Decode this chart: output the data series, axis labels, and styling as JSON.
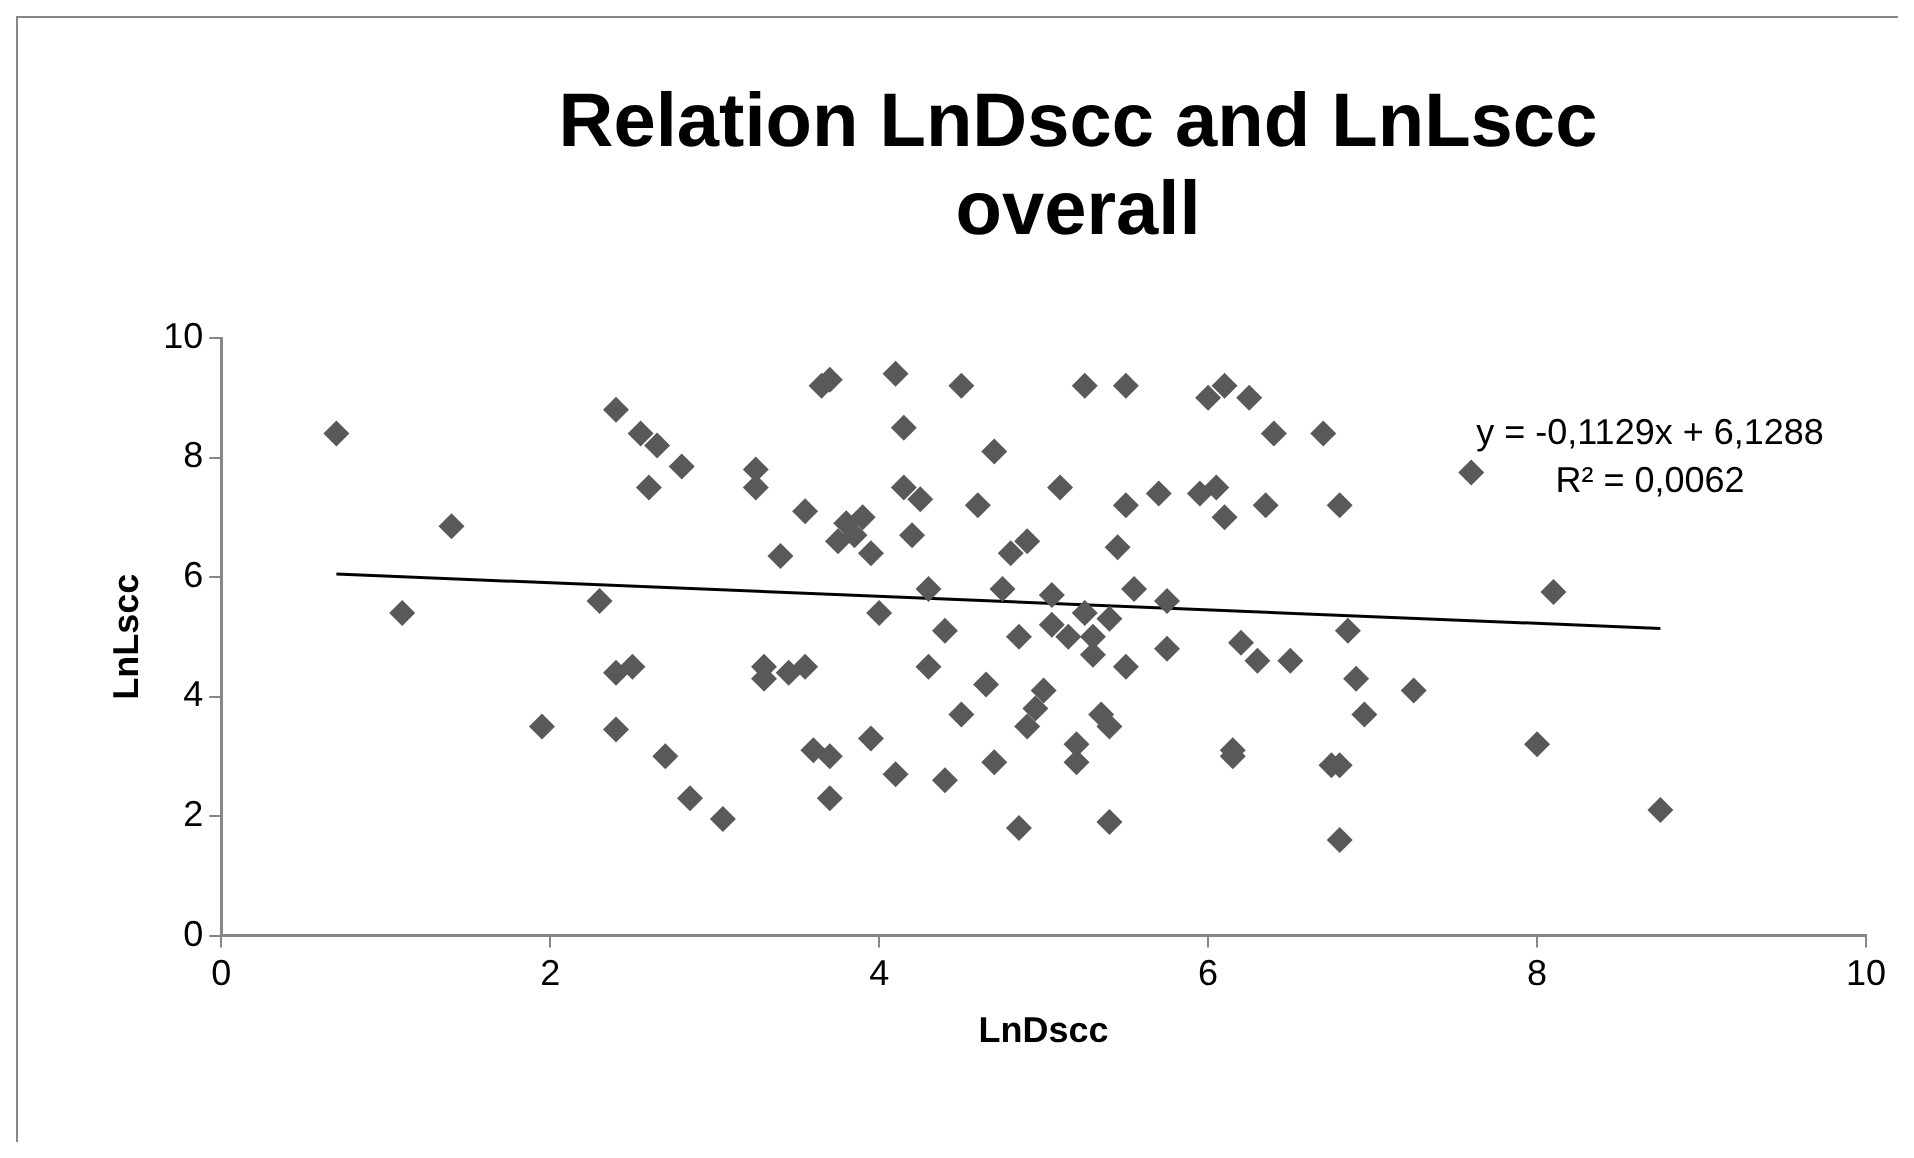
{
  "chart_data": {
    "type": "scatter",
    "title": "Relation LnDscc and LnLscc overall",
    "xlabel": "LnDscc",
    "ylabel": "LnLscc",
    "xlim": [
      0,
      10
    ],
    "xticks": [
      0,
      2,
      4,
      6,
      8,
      10
    ],
    "ylim": [
      0,
      10
    ],
    "yticks": [
      0,
      2,
      4,
      6,
      8,
      10
    ],
    "grid": false,
    "legend": false,
    "marker": "diamond",
    "annotations": [
      "y = -0,1129x + 6,1288",
      "R² = 0,0062"
    ],
    "series": [
      {
        "color": "#595959",
        "x": [
          0.7,
          1.1,
          1.4,
          1.95,
          2.3,
          2.4,
          2.4,
          2.4,
          2.5,
          2.55,
          2.6,
          2.65,
          2.7,
          2.8,
          2.85,
          3.05,
          3.25,
          3.25,
          3.3,
          3.3,
          3.4,
          3.45,
          3.55,
          3.55,
          3.6,
          3.65,
          3.7,
          3.7,
          3.7,
          3.75,
          3.8,
          3.85,
          3.9,
          3.95,
          3.95,
          4.0,
          4.1,
          4.1,
          4.15,
          4.15,
          4.2,
          4.25,
          4.3,
          4.3,
          4.4,
          4.4,
          4.5,
          4.5,
          4.6,
          4.65,
          4.7,
          4.7,
          4.75,
          4.8,
          4.85,
          4.85,
          4.9,
          4.9,
          4.95,
          5.0,
          5.05,
          5.05,
          5.1,
          5.15,
          5.2,
          5.2,
          5.25,
          5.25,
          5.3,
          5.3,
          5.35,
          5.4,
          5.4,
          5.4,
          5.45,
          5.5,
          5.5,
          5.5,
          5.55,
          5.7,
          5.75,
          5.75,
          5.95,
          6.0,
          6.05,
          6.1,
          6.1,
          6.15,
          6.15,
          6.2,
          6.25,
          6.3,
          6.35,
          6.4,
          6.5,
          6.7,
          6.75,
          6.8,
          6.8,
          6.8,
          6.85,
          6.9,
          6.95,
          7.25,
          7.6,
          8.0,
          8.1,
          8.75
        ],
        "values": [
          8.4,
          5.4,
          6.85,
          3.5,
          5.6,
          8.8,
          4.4,
          3.45,
          4.5,
          8.4,
          7.5,
          8.2,
          3.0,
          7.85,
          2.3,
          1.95,
          7.8,
          7.5,
          4.3,
          4.5,
          6.35,
          4.4,
          4.5,
          7.1,
          3.1,
          9.2,
          2.3,
          9.3,
          3.0,
          6.6,
          6.9,
          6.7,
          7.0,
          6.4,
          3.3,
          5.4,
          2.7,
          9.4,
          8.5,
          7.5,
          6.7,
          7.3,
          5.8,
          4.5,
          5.1,
          2.6,
          3.7,
          9.2,
          7.2,
          4.2,
          8.1,
          2.9,
          5.8,
          6.4,
          5.0,
          1.8,
          3.5,
          6.6,
          3.8,
          4.1,
          5.2,
          5.7,
          7.5,
          5.0,
          2.9,
          3.2,
          9.2,
          5.4,
          4.7,
          5.0,
          3.7,
          1.9,
          3.5,
          5.3,
          6.5,
          7.2,
          9.2,
          4.5,
          5.8,
          7.4,
          5.6,
          4.8,
          7.4,
          9.0,
          7.5,
          7.0,
          9.2,
          3.1,
          3.0,
          4.9,
          9.0,
          4.6,
          7.2,
          8.4,
          4.6,
          8.4,
          2.85,
          1.6,
          2.85,
          7.2,
          5.1,
          4.3,
          3.7,
          4.1,
          7.75,
          3.2,
          5.75,
          2.1
        ]
      },
      {
        "type": "line",
        "color": "#000000",
        "marker": "none",
        "x": [
          0.7,
          8.75
        ],
        "values": [
          6.05,
          5.14
        ]
      }
    ]
  }
}
